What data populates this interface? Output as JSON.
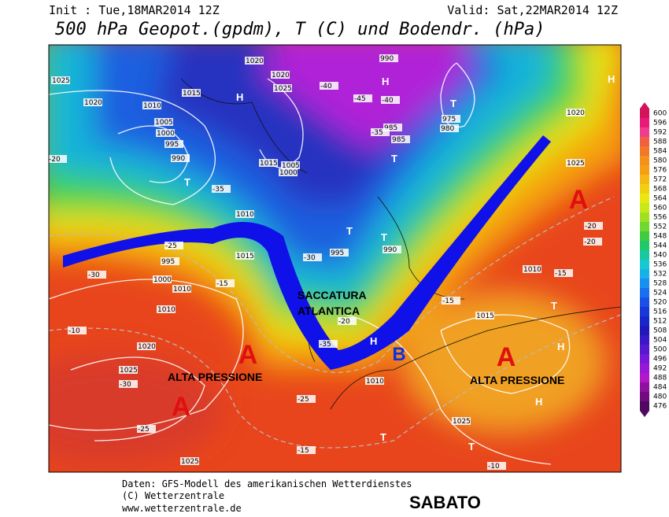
{
  "header": {
    "init": "Init : Tue,18MAR2014 12Z",
    "valid": "Valid: Sat,22MAR2014 12Z",
    "title": "500 hPa Geopot.(gpdm), T (C) und Bodendr. (hPa)"
  },
  "annotations": [
    "A",
    "A",
    "A",
    "A",
    "ALTA PRESSIONE",
    "ALTA PRESSIONE",
    "SACCATURA",
    "ATLANTICA",
    "B"
  ],
  "pressure_marks": [
    "H",
    "H",
    "H",
    "H",
    "H",
    "H",
    "T",
    "T",
    "T",
    "T",
    "T",
    "T",
    "T",
    "T"
  ],
  "contour_labels": [
    "1020",
    "1025",
    "1020",
    "1010",
    "1015",
    "1005",
    "1000",
    "995",
    "990",
    "1020",
    "1025",
    "1010",
    "1015",
    "1005",
    "1000",
    "990",
    "980",
    "975",
    "985",
    "990",
    "985",
    "995",
    "1010",
    "995",
    "1000",
    "1025",
    "1010",
    "1020",
    "1025",
    "1025",
    "1020",
    "1015",
    "1015",
    "1010",
    "1010",
    "1025",
    "-25",
    "-30",
    "-35",
    "-40",
    "-45",
    "-40",
    "-35",
    "-30",
    "-25",
    "-20",
    "-15",
    "-10",
    "-30",
    "-35",
    "-20",
    "-25",
    "-20",
    "-15",
    "-20",
    "-15",
    "-15",
    "-10"
  ],
  "colorbar": {
    "levels": [
      600,
      596,
      592,
      588,
      584,
      580,
      576,
      572,
      568,
      564,
      560,
      556,
      552,
      548,
      544,
      540,
      536,
      532,
      528,
      524,
      520,
      516,
      512,
      508,
      504,
      500,
      496,
      492,
      488,
      484,
      480,
      476
    ]
  },
  "footer": {
    "source": "Daten: GFS-Modell des amerikanischen Wetterdienstes",
    "copyright": "(C) Wetterzentrale",
    "url": "www.wetterzentrale.de",
    "day": "SABATO"
  }
}
